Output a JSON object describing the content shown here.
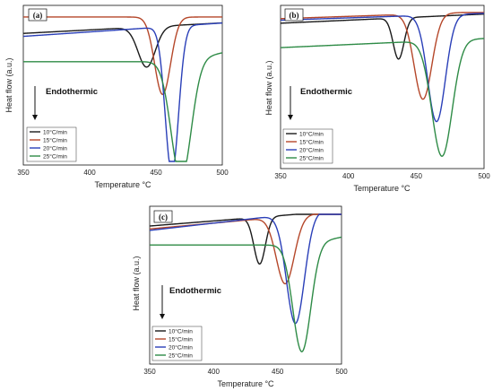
{
  "chart_data": [
    {
      "type": "line",
      "panel_label": "(a)",
      "xlabel": "Temperature °C",
      "ylabel": "Heat flow (a.u.)",
      "xlim": [
        350,
        500
      ],
      "x_ticks": [
        "350",
        "400",
        "450",
        "500"
      ],
      "annotation": "Endothermic",
      "legend_position": "bottom-left",
      "series": [
        {
          "name": "10°C/min",
          "color": "#1a1a1a",
          "baseline": 0.86,
          "base_slope": 0.00047,
          "peak_x": 443,
          "depth": 0.27,
          "width": 6.5,
          "tail": 0.0
        },
        {
          "name": "15°C/min",
          "color": "#b5472a",
          "baseline": 0.97,
          "base_slope": 0.0,
          "peak_x": 455,
          "depth": 0.52,
          "width": 6.0,
          "tail": 0.0
        },
        {
          "name": "20°C/min",
          "color": "#2a3fb8",
          "baseline": 0.84,
          "base_slope": 0.0006,
          "peak_x": 462,
          "depth": 0.99,
          "width": 5.0,
          "tail": 0.0
        },
        {
          "name": "25°C/min",
          "color": "#2e8b46",
          "baseline": 0.67,
          "base_slope": 0.0,
          "peak_x": 469,
          "depth": 0.79,
          "width": 7.5,
          "tail": 0.2
        }
      ]
    },
    {
      "type": "line",
      "panel_label": "(b)",
      "xlabel": "Temperature °C",
      "ylabel": "Heat flow (a.u.)",
      "xlim": [
        350,
        500
      ],
      "x_ticks": [
        "350",
        "400",
        "450",
        "500"
      ],
      "annotation": "Endothermic",
      "legend_position": "bottom-left",
      "series": [
        {
          "name": "10°C/min",
          "color": "#1a1a1a",
          "baseline": 0.93,
          "base_slope": 0.0004,
          "peak_x": 437,
          "depth": 0.27,
          "width": 4.0,
          "tail": 0.0
        },
        {
          "name": "15°C/min",
          "color": "#b5472a",
          "baseline": 0.96,
          "base_slope": 0.0003,
          "peak_x": 455,
          "depth": 0.56,
          "width": 6.5,
          "tail": 0.0
        },
        {
          "name": "20°C/min",
          "color": "#2a3fb8",
          "baseline": 0.95,
          "base_slope": 0.0003,
          "peak_x": 465,
          "depth": 0.7,
          "width": 6.5,
          "tail": 0.0
        },
        {
          "name": "25°C/min",
          "color": "#2e8b46",
          "baseline": 0.77,
          "base_slope": 0.0004,
          "peak_x": 469,
          "depth": 0.76,
          "width": 7.5,
          "tail": 0.0
        }
      ]
    },
    {
      "type": "line",
      "panel_label": "(c)",
      "xlabel": "Temperature °C",
      "ylabel": "Heat flow (a.u.)",
      "xlim": [
        350,
        500
      ],
      "x_ticks": [
        "350",
        "400",
        "450",
        "500"
      ],
      "annotation": "Endothermic",
      "legend_position": "bottom-left",
      "series": [
        {
          "name": "10°C/min",
          "color": "#1a1a1a",
          "baseline": 0.92,
          "base_slope": 0.0007,
          "peak_x": 436,
          "depth": 0.32,
          "width": 4.5,
          "tail": 0.0
        },
        {
          "name": "15°C/min",
          "color": "#b5472a",
          "baseline": 0.9,
          "base_slope": 0.0008,
          "peak_x": 456,
          "depth": 0.46,
          "width": 7.0,
          "tail": 0.0
        },
        {
          "name": "20°C/min",
          "color": "#2a3fb8",
          "baseline": 0.89,
          "base_slope": 0.001,
          "peak_x": 464,
          "depth": 0.75,
          "width": 7.0,
          "tail": 0.0
        },
        {
          "name": "25°C/min",
          "color": "#2e8b46",
          "baseline": 0.79,
          "base_slope": 0.0,
          "peak_x": 469,
          "depth": 0.73,
          "width": 7.0,
          "tail": 0.18
        }
      ]
    }
  ]
}
